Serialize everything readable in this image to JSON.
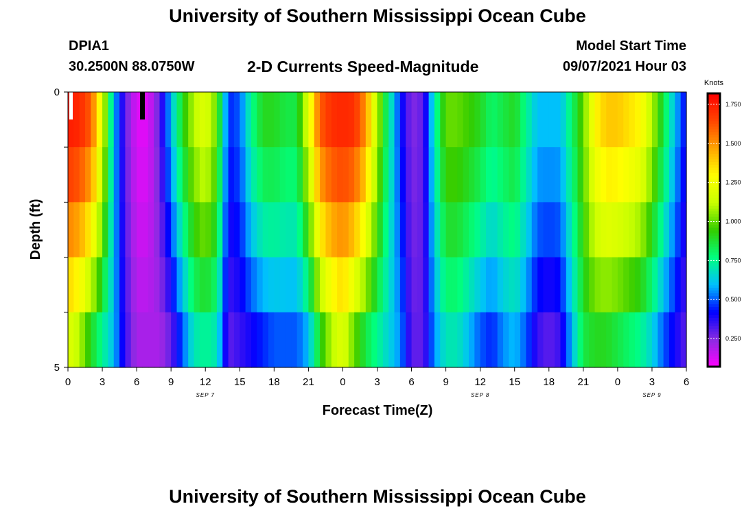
{
  "header": {
    "title": "University of Southern Mississippi Ocean Cube",
    "station_id": "DPIA1",
    "station_coords": "30.2500N  88.0750W",
    "model_label": "Model Start Time",
    "model_time": "09/07/2021 Hour 03"
  },
  "footer": {
    "title": "University of Southern Mississippi Ocean Cube"
  },
  "chart_data": {
    "type": "heatmap",
    "title": "2-D Currents Speed-Magnitude",
    "xlabel": "Forecast Time(Z)",
    "ylabel": "Depth (ft)",
    "colorbar_label": "Knots",
    "x_hours_range": [
      0,
      54
    ],
    "x_tick_hours": [
      0,
      3,
      6,
      9,
      12,
      15,
      18,
      21,
      24,
      27,
      30,
      33,
      36,
      39,
      42,
      45,
      48,
      51,
      54
    ],
    "x_tick_labels": [
      "0",
      "3",
      "6",
      "9",
      "12",
      "15",
      "18",
      "21",
      "0",
      "3",
      "6",
      "9",
      "12",
      "15",
      "18",
      "21",
      "0",
      "3",
      "6"
    ],
    "day_labels": [
      {
        "hour": 12,
        "text": "SEP 7"
      },
      {
        "hour": 36,
        "text": "SEP 8"
      },
      {
        "hour": 51,
        "text": "SEP 9"
      }
    ],
    "y_range": [
      0,
      5
    ],
    "y_tick_labels": [
      "0",
      "5"
    ],
    "depth_bands": 5,
    "colorbar_ticks": [
      "0.250",
      "0.500",
      "0.750",
      "1.000",
      "1.250",
      "1.500",
      "1.750"
    ],
    "colorbar_tick_values": [
      0.25,
      0.5,
      0.75,
      1.0,
      1.25,
      1.5,
      1.75
    ],
    "colorbar_range": [
      0.07,
      1.82
    ],
    "colormap": [
      "#ff00ff",
      "#8a2be2",
      "#0000ff",
      "#00bfff",
      "#00ff80",
      "#33cc00",
      "#c8ff00",
      "#ffff00",
      "#ffa500",
      "#ff4500",
      "#ff0000"
    ],
    "speed_profile_hours": [
      0,
      1,
      2,
      3,
      4,
      5,
      6,
      7,
      8,
      9,
      10,
      11,
      12,
      13,
      14,
      15,
      16,
      17,
      18,
      19,
      20,
      21,
      22,
      23,
      24,
      25,
      26,
      27,
      28,
      29,
      30,
      31,
      32,
      33,
      34,
      35,
      36,
      37,
      38,
      39,
      40,
      41,
      42,
      43,
      44,
      45,
      46,
      47,
      48,
      49,
      50,
      51,
      52,
      53,
      54
    ],
    "speed_surface": [
      1.75,
      1.72,
      1.6,
      1.2,
      0.6,
      0.3,
      0.12,
      0.12,
      0.3,
      0.6,
      0.9,
      1.1,
      1.2,
      1.0,
      0.45,
      0.5,
      0.75,
      0.9,
      0.9,
      0.85,
      0.85,
      1.2,
      1.6,
      1.7,
      1.72,
      1.7,
      1.5,
      1.1,
      0.75,
      0.45,
      0.25,
      0.3,
      0.7,
      1.0,
      1.0,
      0.95,
      0.9,
      0.8,
      0.85,
      0.9,
      0.75,
      0.6,
      0.6,
      0.6,
      0.8,
      1.0,
      1.3,
      1.4,
      1.4,
      1.35,
      1.3,
      1.1,
      0.85,
      0.6,
      0.4
    ],
    "speed_bottom": [
      1.2,
      1.1,
      0.9,
      0.75,
      0.6,
      0.35,
      0.2,
      0.2,
      0.2,
      0.3,
      0.5,
      0.7,
      0.75,
      0.7,
      0.3,
      0.35,
      0.4,
      0.45,
      0.5,
      0.5,
      0.5,
      0.6,
      0.9,
      1.1,
      1.2,
      1.0,
      0.85,
      0.75,
      0.65,
      0.55,
      0.3,
      0.3,
      0.55,
      0.7,
      0.7,
      0.6,
      0.5,
      0.45,
      0.55,
      0.6,
      0.5,
      0.35,
      0.3,
      0.35,
      0.6,
      0.85,
      0.9,
      0.9,
      0.85,
      0.8,
      0.75,
      0.65,
      0.5,
      0.4,
      0.3
    ]
  }
}
